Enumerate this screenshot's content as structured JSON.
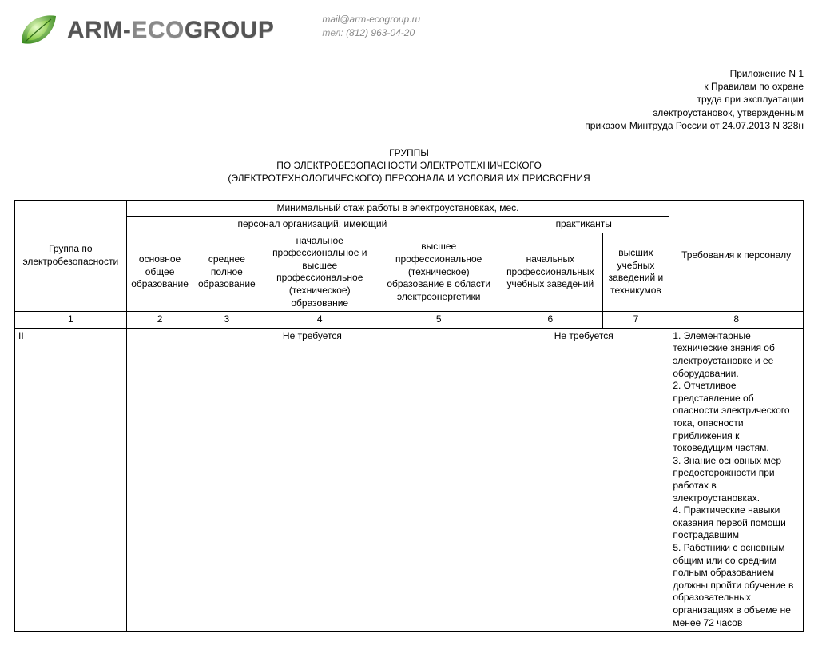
{
  "header": {
    "logo_bold": "ARM-",
    "logo_light": "ECO",
    "logo_tail": "GROUP",
    "email": "mail@arm-ecogroup.ru",
    "tel_label": "тел:",
    "tel": "(812) 963-04-20"
  },
  "appendix": {
    "l1": "Приложение N 1",
    "l2": "к Правилам по охране",
    "l3": "труда при эксплуатации",
    "l4": "электроустановок, утвержденным",
    "l5": "приказом Минтруда России от 24.07.2013 N 328н"
  },
  "title": {
    "l1": "ГРУППЫ",
    "l2": "ПО ЭЛЕКТРОБЕЗОПАСНОСТИ ЭЛЕКТРОТЕХНИЧЕСКОГО",
    "l3": "(ЭЛЕКТРОТЕХНОЛОГИЧЕСКОГО) ПЕРСОНАЛА И УСЛОВИЯ ИХ ПРИСВОЕНИЯ"
  },
  "table": {
    "col_widths_pct": [
      15,
      9,
      9,
      16,
      16,
      14,
      9,
      18
    ],
    "head": {
      "group": "Группа по электробезопасности",
      "stage": "Минимальный стаж работы в электроустановках, мес.",
      "req": "Требования к персоналу",
      "personnel": "персонал организаций, имеющий",
      "praktikanty": "практиканты",
      "c2": "основное общее образование",
      "c3": "среднее полное образование",
      "c4": "начальное профессиональное и высшее профессиональное (техническое) образование",
      "c5": "высшее профессиональное (техническое) образование в области электроэнергетики",
      "c6": "начальных профессиональных учебных заведений",
      "c7": "высших учебных заведений и техникумов"
    },
    "colnums": [
      "1",
      "2",
      "3",
      "4",
      "5",
      "6",
      "7",
      "8"
    ],
    "row": {
      "group": "II",
      "not_required_a": "Не требуется",
      "not_required_b": "Не требуется",
      "req_text": "1. Элементарные технические знания об электроустановке и ее оборудовании.\n2. Отчетливое представление об опасности электрического тока, опасности приближения к токоведущим частям.\n3. Знание основных мер предосторожности при работах в электроустановках.\n4. Практические навыки оказания первой помощи пострадавшим\n5. Работники с основным общим или со средним полным образованием должны пройти обучение в образовательных организациях в объеме не менее 72 часов"
    }
  },
  "colors": {
    "text": "#000000",
    "border": "#000000",
    "logo_dark": "#555555",
    "logo_light": "#888888",
    "contact": "#888888",
    "leaf_outer": "#3a8a1f",
    "leaf_inner": "#9fe05a"
  }
}
